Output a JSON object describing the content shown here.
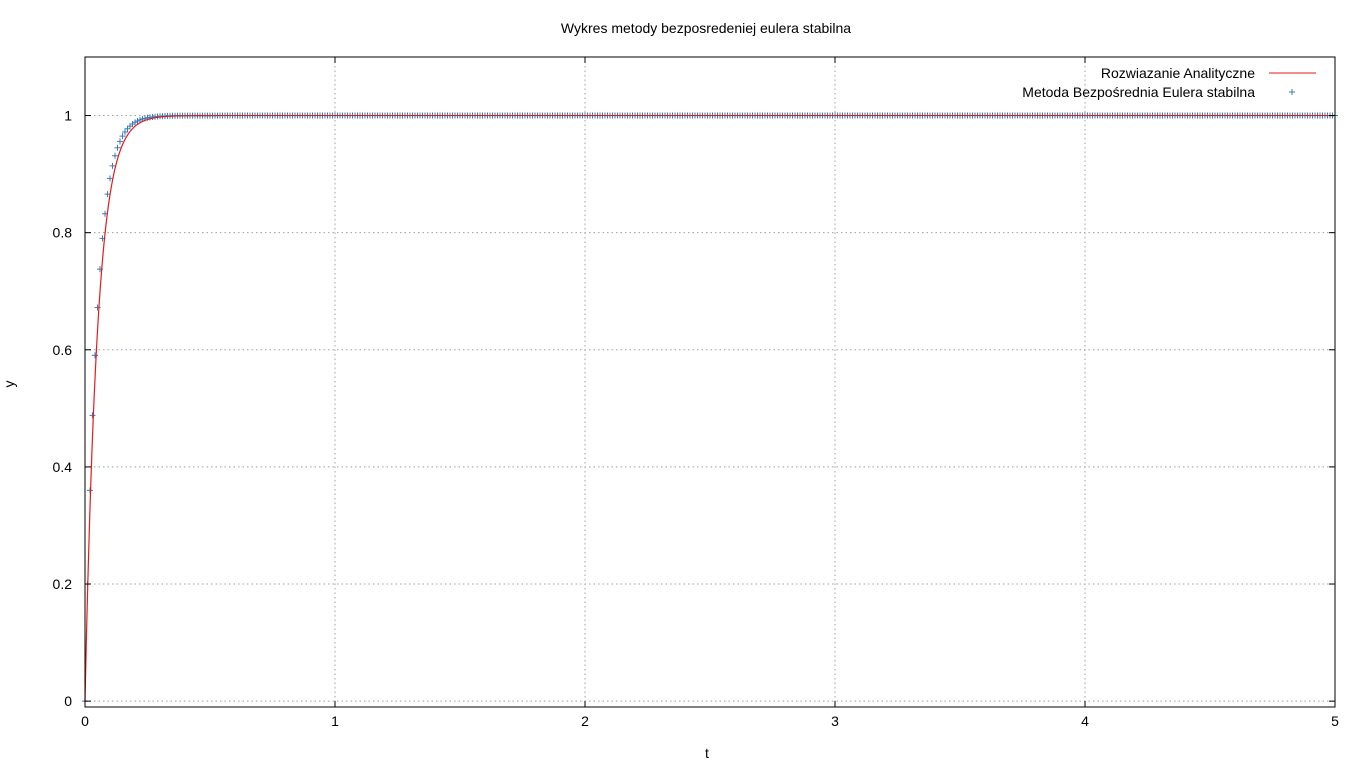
{
  "chart_data": {
    "type": "line",
    "title": "Wykres metody bezposredeniej eulera stabilna",
    "xlabel": "t",
    "ylabel": "y",
    "xlim": [
      0,
      5
    ],
    "ylim": [
      -0.01,
      1.1
    ],
    "x_ticks": [
      "0",
      "1",
      "2",
      "3",
      "4",
      "5"
    ],
    "y_ticks": [
      "0",
      "0.2",
      "0.4",
      "0.6",
      "0.8",
      "1"
    ],
    "x_tick_values": [
      0,
      1,
      2,
      3,
      4,
      5
    ],
    "y_tick_values": [
      0,
      0.2,
      0.4,
      0.6,
      0.8,
      1
    ],
    "grid": true,
    "legend_position": "top-right",
    "series": [
      {
        "name": "Rozwiazanie Analityczne",
        "style": "line",
        "color": "#e41a1c",
        "formula": "y = 1 - exp(-20 t)",
        "x_range": [
          0,
          5
        ]
      },
      {
        "name": "Metoda Bezpośrednia Eulera stabilna",
        "style": "points",
        "marker": "plus",
        "color": "#377eb8",
        "step": 0.01,
        "rate": 20,
        "x_range": [
          0,
          5
        ]
      }
    ]
  }
}
